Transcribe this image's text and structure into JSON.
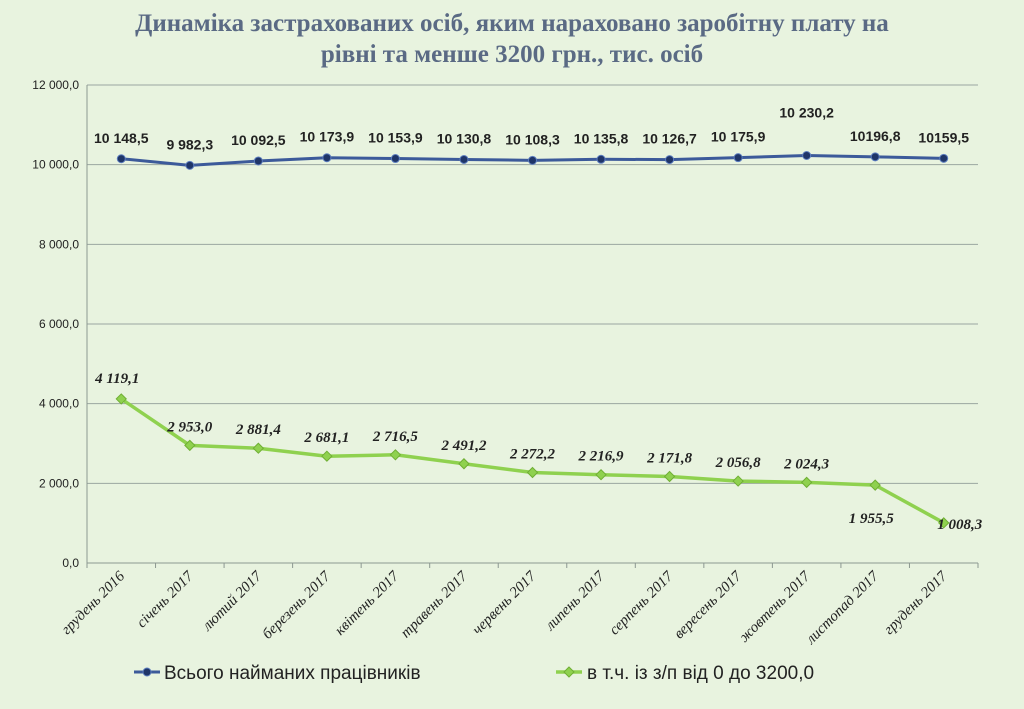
{
  "chart_data": {
    "type": "line",
    "title_line1": "Динаміка застрахованих осіб, яким нараховано заробітну плату на",
    "title_line2": "рівні та менше 3200 грн., тис. осіб",
    "categories": [
      "грудень 2016",
      "січень 2017",
      "лютий 2017",
      "березень 2017",
      "квітень 2017",
      "травень 2017",
      "червень 2017",
      "липень 2017",
      "серпень 2017",
      "вересень 2017",
      "жовтень 2017",
      "листопад 2017",
      "грудень 2017"
    ],
    "ylim": [
      0,
      12000
    ],
    "y_ticks": [
      0,
      2000,
      4000,
      6000,
      8000,
      10000,
      12000
    ],
    "y_tick_labels": [
      "0,0",
      "2 000,0",
      "4 000,0",
      "6 000,0",
      "8 000,0",
      "10 000,0",
      "12 000,0"
    ],
    "grid": true,
    "legend_position": "bottom",
    "series": [
      {
        "name": "Всього найманих працівників",
        "color": "#3c5a9a",
        "values": [
          10148.5,
          9982.3,
          10092.5,
          10173.9,
          10153.9,
          10130.8,
          10108.3,
          10135.8,
          10126.7,
          10175.9,
          10230.2,
          10196.8,
          10159.5
        ],
        "labels": [
          "10 148,5",
          "9 982,3",
          "10 092,5",
          "10 173,9",
          "10 153,9",
          "10 130,8",
          "10 108,3",
          "10 135,8",
          "10 126,7",
          "10 175,9",
          "10 230,2",
          "10196,8",
          "10159,5"
        ]
      },
      {
        "name": "в т.ч. із з/п від 0 до 3200,0",
        "color": "#8fd14f",
        "values": [
          4119.1,
          2953.0,
          2881.4,
          2681.1,
          2716.5,
          2491.2,
          2272.2,
          2216.9,
          2171.8,
          2056.8,
          2024.3,
          1955.5,
          1008.3
        ],
        "labels": [
          "4 119,1",
          "2 953,0",
          "2 881,4",
          "2 681,1",
          "2 716,5",
          "2 491,2",
          "2 272,2",
          "2 216,9",
          "2 171,8",
          "2 056,8",
          "2 024,3",
          "1 955,5",
          "1 008,3"
        ]
      }
    ]
  }
}
